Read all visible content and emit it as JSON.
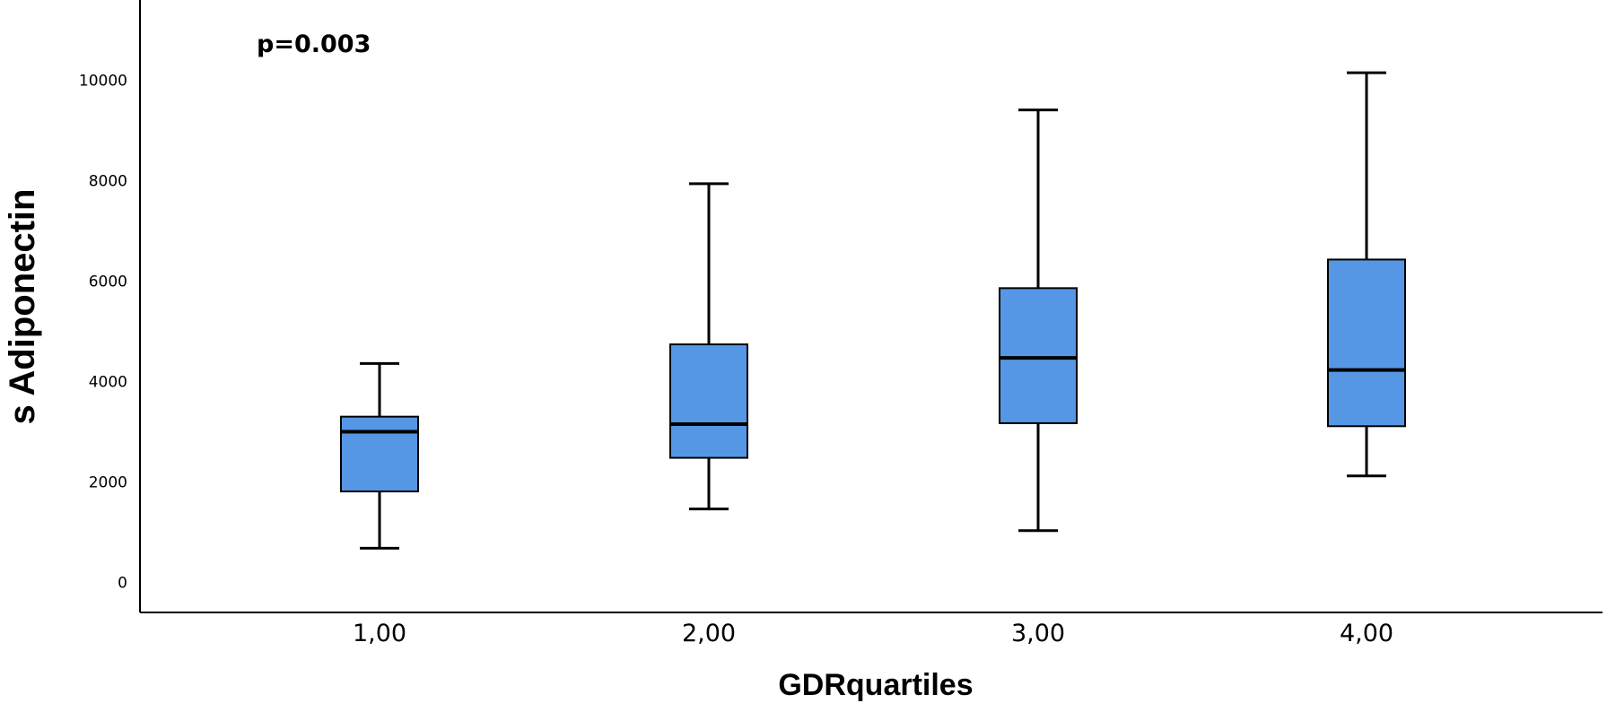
{
  "chart_data": {
    "type": "boxplot",
    "xlabel": "GDRquartiles",
    "ylabel": "s Adiponectin",
    "annotation": "p=0.003",
    "y_ticks": [
      0,
      2000,
      4000,
      6000,
      8000,
      10000
    ],
    "y_tick_labels": [
      "0",
      "2000",
      "4000",
      "6000",
      "8000",
      "10000"
    ],
    "ylim": [
      -600,
      11600
    ],
    "grid": false,
    "box_color": "#5597e4",
    "categories": [
      "1,00",
      "2,00",
      "3,00",
      "4,00"
    ],
    "boxes": [
      {
        "category": "1,00",
        "whisker_low": 680,
        "q1": 1810,
        "median": 3000,
        "q3": 3300,
        "whisker_high": 4360
      },
      {
        "category": "2,00",
        "whisker_low": 1460,
        "q1": 2480,
        "median": 3150,
        "q3": 4740,
        "whisker_high": 7940
      },
      {
        "category": "3,00",
        "whisker_low": 1030,
        "q1": 3170,
        "median": 4470,
        "q3": 5860,
        "whisker_high": 9410
      },
      {
        "category": "4,00",
        "whisker_low": 2120,
        "q1": 3110,
        "median": 4230,
        "q3": 6430,
        "whisker_high": 10150
      }
    ]
  }
}
